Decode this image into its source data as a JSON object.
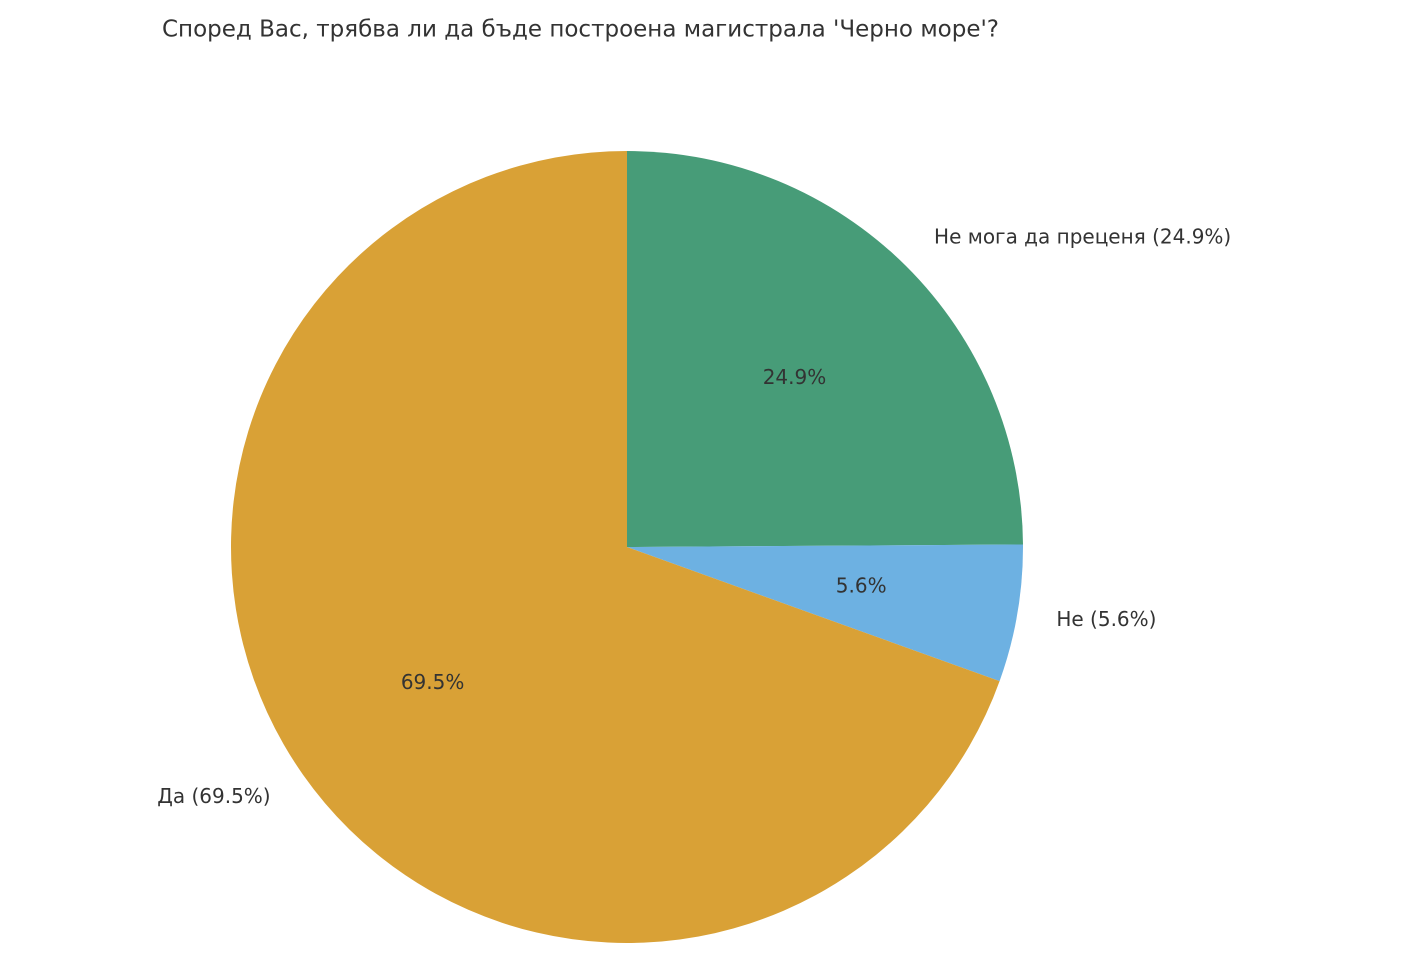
{
  "chart_data": {
    "type": "pie",
    "title": "Според Вас, трябва ли да бъде построена магистрала 'Черно море'?",
    "categories": [
      "Не мога да преценя (24.9%)",
      "Не (5.6%)",
      "Да (69.5%)"
    ],
    "values": [
      24.9,
      5.6,
      69.5
    ],
    "value_labels": [
      "24.9%",
      "5.6%",
      "69.5%"
    ],
    "colors": [
      "#479c78",
      "#6db1e2",
      "#d9a136"
    ]
  }
}
